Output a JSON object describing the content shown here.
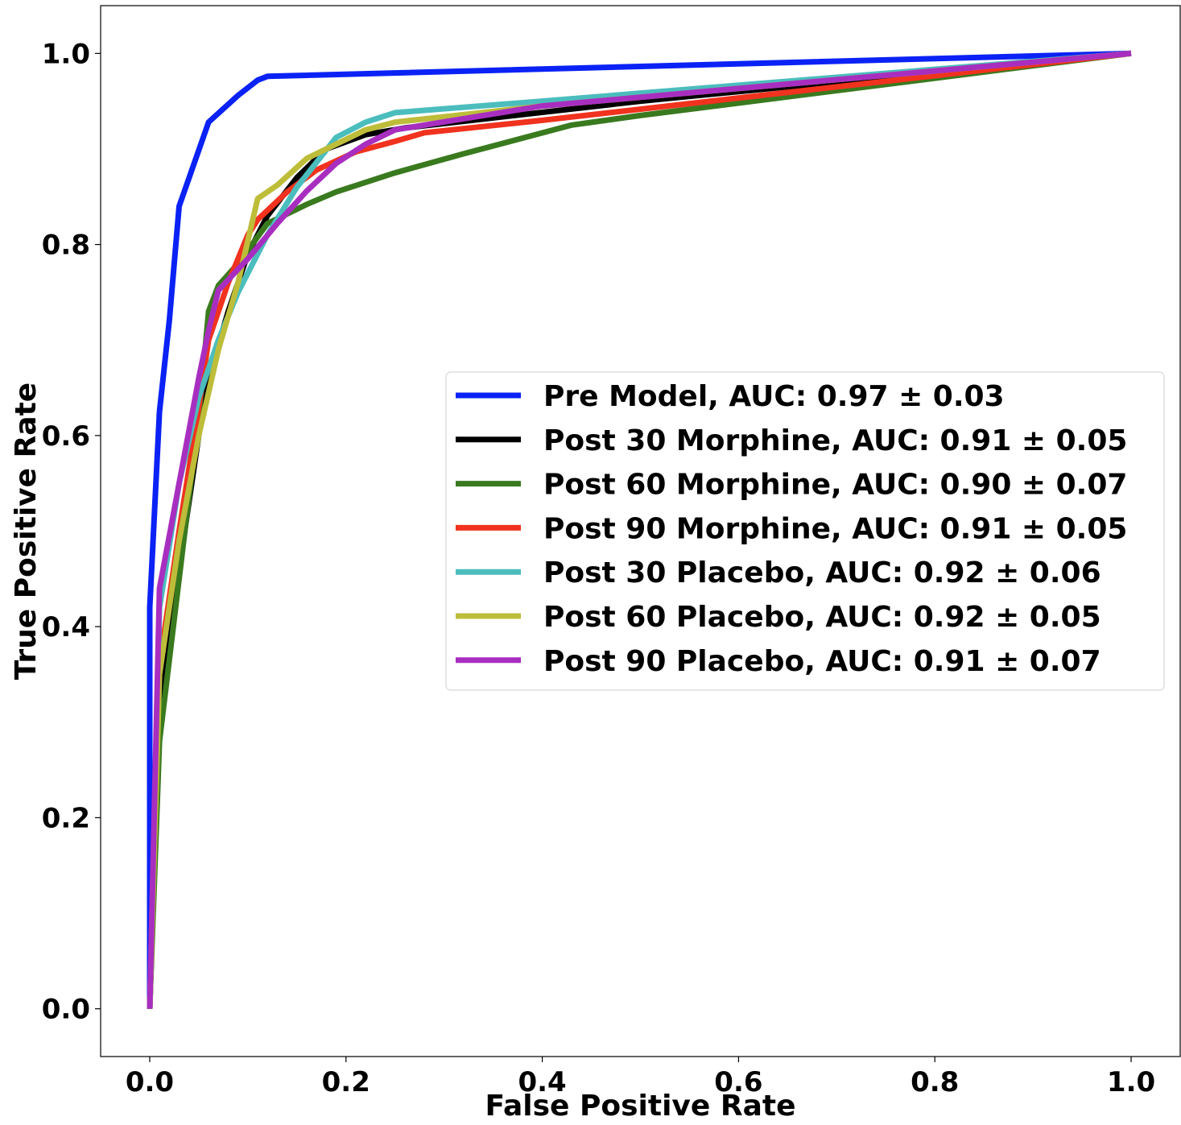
{
  "chart_data": {
    "type": "line",
    "title": "",
    "xlabel": "False Positive Rate",
    "ylabel": "True Positive Rate",
    "xlim": [
      -0.05,
      1.05
    ],
    "ylim": [
      -0.05,
      1.05
    ],
    "xticks": [
      "0.0",
      "0.2",
      "0.4",
      "0.6",
      "0.8",
      "1.0"
    ],
    "yticks": [
      "0.0",
      "0.2",
      "0.4",
      "0.6",
      "0.8",
      "1.0"
    ],
    "grid": false,
    "legend_position": "center-right",
    "series": [
      {
        "name": "Pre Model, AUC: 0.97 ± 0.03",
        "color": "#0a22f5",
        "x": [
          0.0,
          0.0,
          0.01,
          0.02,
          0.03,
          0.06,
          0.09,
          0.11,
          0.12,
          1.0
        ],
        "y": [
          0.0,
          0.42,
          0.625,
          0.72,
          0.84,
          0.928,
          0.956,
          0.972,
          0.976,
          1.0
        ]
      },
      {
        "name": "Post 30 Morphine, AUC: 0.91 ± 0.05",
        "color": "#000000",
        "x": [
          0.0,
          0.01,
          0.03,
          0.05,
          0.06,
          0.08,
          0.1,
          0.12,
          0.15,
          0.18,
          0.22,
          0.26,
          0.5,
          1.0
        ],
        "y": [
          0.0,
          0.32,
          0.46,
          0.6,
          0.66,
          0.73,
          0.79,
          0.83,
          0.87,
          0.9,
          0.915,
          0.922,
          0.95,
          1.0
        ]
      },
      {
        "name": "Post 60 Morphine, AUC: 0.90 ± 0.07",
        "color": "#3a7a1f",
        "x": [
          0.0,
          0.01,
          0.03,
          0.05,
          0.06,
          0.07,
          0.09,
          0.12,
          0.16,
          0.19,
          0.25,
          0.32,
          0.43,
          0.5,
          1.0
        ],
        "y": [
          0.0,
          0.28,
          0.45,
          0.62,
          0.73,
          0.757,
          0.78,
          0.822,
          0.842,
          0.855,
          0.875,
          0.895,
          0.925,
          0.935,
          1.0
        ]
      },
      {
        "name": "Post 90 Morphine, AUC: 0.91 ± 0.05",
        "color": "#f0321e",
        "x": [
          0.0,
          0.01,
          0.03,
          0.05,
          0.06,
          0.08,
          0.1,
          0.11,
          0.14,
          0.17,
          0.21,
          0.25,
          0.28,
          0.4,
          1.0
        ],
        "y": [
          0.0,
          0.36,
          0.5,
          0.63,
          0.7,
          0.76,
          0.81,
          0.826,
          0.855,
          0.878,
          0.897,
          0.908,
          0.917,
          0.93,
          1.0
        ]
      },
      {
        "name": "Post 30 Placebo, AUC: 0.92 ± 0.06",
        "color": "#4bbdbd",
        "x": [
          0.0,
          0.01,
          0.03,
          0.05,
          0.07,
          0.09,
          0.12,
          0.15,
          0.19,
          0.22,
          0.25,
          0.4,
          1.0
        ],
        "y": [
          0.0,
          0.42,
          0.55,
          0.64,
          0.7,
          0.75,
          0.81,
          0.86,
          0.912,
          0.928,
          0.938,
          0.95,
          1.0
        ]
      },
      {
        "name": "Post 60 Placebo, AUC: 0.92 ± 0.05",
        "color": "#bdbd3a",
        "x": [
          0.0,
          0.01,
          0.03,
          0.05,
          0.07,
          0.09,
          0.11,
          0.13,
          0.16,
          0.19,
          0.22,
          0.25,
          0.4,
          1.0
        ],
        "y": [
          0.0,
          0.35,
          0.49,
          0.6,
          0.69,
          0.76,
          0.848,
          0.862,
          0.89,
          0.905,
          0.92,
          0.928,
          0.945,
          1.0
        ]
      },
      {
        "name": "Post 90 Placebo, AUC: 0.91 ± 0.07",
        "color": "#a82ec0",
        "x": [
          0.0,
          0.01,
          0.03,
          0.05,
          0.06,
          0.07,
          0.1,
          0.13,
          0.16,
          0.19,
          0.22,
          0.25,
          0.4,
          1.0
        ],
        "y": [
          0.0,
          0.44,
          0.55,
          0.66,
          0.71,
          0.752,
          0.785,
          0.822,
          0.856,
          0.885,
          0.905,
          0.92,
          0.945,
          1.0
        ]
      }
    ]
  }
}
